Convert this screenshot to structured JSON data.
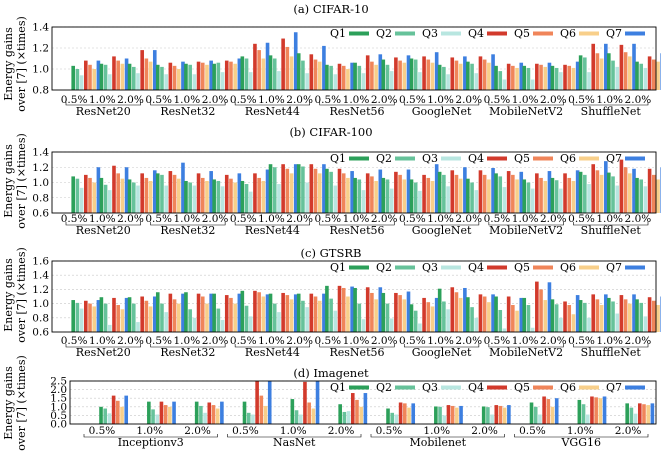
{
  "colors": [
    "#2ca05a",
    "#66c29a",
    "#b8e6e0",
    "#d23a2c",
    "#f0855a",
    "#f8cf8a",
    "#3d7fe0"
  ],
  "legend": [
    "Q1",
    "Q2",
    "Q3",
    "Q4",
    "Q5",
    "Q6",
    "Q7"
  ],
  "ylabel": [
    "Energy gains",
    "over [7] (×times)"
  ],
  "chart_data": [
    {
      "type": "bar",
      "title": "(a) CIFAR-10",
      "ylim": [
        0.8,
        1.4
      ],
      "yticks": [
        "0.8",
        "1.0",
        "1.2",
        "1.4"
      ],
      "grid": true,
      "legend_position": "top-right",
      "groups": [
        "ResNet20",
        "ResNet32",
        "ResNet44",
        "ResNet56",
        "GoogleNet",
        "MobileNetV2",
        "ShuffleNet"
      ],
      "subcategories": [
        "0.5%",
        "1.0%",
        "2.0%"
      ],
      "series": [
        {
          "name": "Q1",
          "values": [
            1.03,
            1.05,
            1.05,
            1.04,
            1.05,
            1.05,
            1.12,
            1.13,
            1.15,
            1.04,
            1.06,
            1.09,
            1.1,
            1.04,
            1.07,
            1.03,
            1.03,
            1.03,
            1.13,
            1.15,
            1.07
          ]
        },
        {
          "name": "Q2",
          "values": [
            1.0,
            1.04,
            1.02,
            1.02,
            1.04,
            1.06,
            1.1,
            1.1,
            1.08,
            1.03,
            1.03,
            1.04,
            1.09,
            1.02,
            1.05,
            0.98,
            1.01,
            1.01,
            1.11,
            1.08,
            1.05
          ]
        },
        {
          "name": "Q3",
          "values": [
            0.94,
            0.95,
            0.96,
            0.95,
            0.95,
            0.97,
            0.97,
            0.98,
            0.96,
            0.95,
            0.96,
            0.98,
            0.97,
            0.95,
            0.96,
            0.9,
            0.9,
            0.97,
            0.97,
            1.02,
            1.01
          ]
        },
        {
          "name": "Q4",
          "values": [
            1.08,
            1.12,
            1.18,
            1.06,
            1.07,
            1.08,
            1.24,
            1.29,
            1.14,
            1.05,
            1.13,
            1.11,
            1.12,
            1.11,
            1.12,
            1.05,
            1.05,
            1.04,
            1.24,
            1.23,
            1.12
          ]
        },
        {
          "name": "Q5",
          "values": [
            1.04,
            1.08,
            1.1,
            1.03,
            1.06,
            1.07,
            1.18,
            1.21,
            1.09,
            1.03,
            1.07,
            1.08,
            1.09,
            1.08,
            1.09,
            1.03,
            1.04,
            1.03,
            1.15,
            1.16,
            1.09
          ]
        },
        {
          "name": "Q6",
          "values": [
            1.0,
            1.05,
            1.07,
            1.0,
            1.04,
            1.05,
            1.1,
            1.12,
            1.07,
            1.0,
            1.04,
            1.06,
            1.06,
            1.05,
            1.06,
            1.01,
            1.02,
            1.01,
            1.1,
            1.12,
            1.07
          ]
        },
        {
          "name": "Q7",
          "values": [
            1.08,
            1.1,
            1.18,
            1.07,
            1.08,
            1.1,
            1.25,
            1.35,
            1.22,
            1.06,
            1.14,
            1.13,
            1.16,
            1.12,
            1.14,
            1.06,
            1.06,
            1.07,
            1.24,
            1.24,
            1.15
          ]
        }
      ]
    },
    {
      "type": "bar",
      "title": "(b) CIFAR-100",
      "ylim": [
        0.6,
        1.4
      ],
      "yticks": [
        "0.6",
        "0.8",
        "1.0",
        "1.2",
        "1.4"
      ],
      "grid": true,
      "legend_position": "top-right",
      "groups": [
        "ResNet20",
        "ResNet32",
        "ResNet44",
        "ResNet56",
        "GoogleNet",
        "MobileNetV2",
        "ShuffleNet"
      ],
      "subcategories": [
        "0.5%",
        "1.0%",
        "2.0%"
      ],
      "series": [
        {
          "name": "Q1",
          "values": [
            1.08,
            1.06,
            1.04,
            1.12,
            1.02,
            1.04,
            1.02,
            1.24,
            1.24,
            1.18,
            1.06,
            1.06,
            1.04,
            1.14,
            1.05,
            1.12,
            1.04,
            1.06,
            1.14,
            1.13,
            1.06
          ]
        },
        {
          "name": "Q2",
          "values": [
            1.05,
            0.97,
            1.0,
            1.1,
            1.0,
            1.02,
            0.98,
            1.2,
            1.21,
            1.14,
            1.04,
            1.04,
            1.0,
            1.1,
            1.0,
            1.08,
            1.0,
            1.03,
            1.1,
            1.08,
            1.04
          ]
        },
        {
          "name": "Q3",
          "values": [
            0.93,
            0.9,
            0.96,
            0.96,
            0.96,
            0.95,
            0.88,
            0.98,
            1.0,
            0.96,
            0.9,
            0.92,
            0.89,
            0.95,
            0.9,
            0.94,
            0.92,
            0.92,
            0.98,
            0.96,
            0.95
          ]
        },
        {
          "name": "Q4",
          "values": [
            1.1,
            1.22,
            1.12,
            1.15,
            1.12,
            1.1,
            1.12,
            1.24,
            1.24,
            1.18,
            1.12,
            1.14,
            1.1,
            1.16,
            1.16,
            1.15,
            1.12,
            1.12,
            1.24,
            1.3,
            1.18
          ]
        },
        {
          "name": "Q5",
          "values": [
            1.06,
            1.12,
            1.06,
            1.1,
            1.06,
            1.05,
            1.06,
            1.18,
            1.18,
            1.12,
            1.08,
            1.1,
            1.06,
            1.1,
            1.1,
            1.1,
            1.06,
            1.06,
            1.16,
            1.2,
            1.1
          ]
        },
        {
          "name": "Q6",
          "values": [
            1.0,
            1.05,
            1.02,
            1.05,
            1.02,
            1.0,
            1.02,
            1.12,
            1.12,
            1.06,
            1.02,
            1.04,
            1.02,
            1.05,
            1.04,
            1.04,
            1.02,
            1.02,
            1.1,
            1.12,
            1.04
          ]
        },
        {
          "name": "Q7",
          "values": [
            1.2,
            1.2,
            1.16,
            1.26,
            1.15,
            1.12,
            1.17,
            1.24,
            1.24,
            1.15,
            1.17,
            1.17,
            1.24,
            1.2,
            1.19,
            1.14,
            1.15,
            1.16,
            1.28,
            1.18,
            1.2
          ]
        }
      ]
    },
    {
      "type": "bar",
      "title": "(c) GTSRB",
      "ylim": [
        0.6,
        1.6
      ],
      "yticks": [
        "0.6",
        "0.8",
        "1.0",
        "1.2",
        "1.4",
        "1.6"
      ],
      "grid": true,
      "legend_position": "top-right",
      "groups": [
        "ResNet20",
        "ResNet32",
        "ResNet44",
        "ResNet56",
        "GoogleNet",
        "MobileNetV2",
        "ShuffleNet"
      ],
      "subcategories": [
        "0.5%",
        "1.0%",
        "2.0%"
      ],
      "series": [
        {
          "name": "Q1",
          "values": [
            1.05,
            1.09,
            1.09,
            1.16,
            1.16,
            1.14,
            1.18,
            1.14,
            1.14,
            1.25,
            1.22,
            1.15,
            0.99,
            1.21,
            1.09,
            1.1,
            1.08,
            1.06,
            1.05,
            1.08,
            1.06
          ]
        },
        {
          "name": "Q2",
          "values": [
            1.01,
            1.0,
            1.0,
            1.0,
            0.92,
            0.93,
            0.97,
            1.0,
            1.04,
            1.07,
            1.0,
            1.0,
            0.9,
            1.03,
            0.95,
            0.91,
            0.98,
            0.99,
            1.01,
            1.03,
            1.01
          ]
        },
        {
          "name": "Q3",
          "values": [
            0.93,
            0.7,
            0.74,
            0.88,
            0.8,
            0.77,
            0.82,
            0.88,
            0.95,
            0.9,
            0.78,
            0.79,
            0.72,
            0.92,
            0.8,
            0.65,
            0.66,
            0.8,
            0.8,
            0.86,
            0.82
          ]
        },
        {
          "name": "Q4",
          "values": [
            1.04,
            1.08,
            1.1,
            1.14,
            1.14,
            1.12,
            1.18,
            1.15,
            1.14,
            1.25,
            1.23,
            1.15,
            1.08,
            1.23,
            1.13,
            1.1,
            1.31,
            1.03,
            1.13,
            1.12,
            1.09
          ]
        },
        {
          "name": "Q5",
          "values": [
            1.0,
            0.98,
            1.04,
            1.06,
            1.1,
            1.08,
            1.16,
            1.12,
            1.1,
            1.22,
            1.15,
            1.12,
            1.02,
            1.16,
            1.1,
            0.98,
            1.2,
            0.98,
            1.06,
            1.06,
            1.04
          ]
        },
        {
          "name": "Q6",
          "values": [
            0.96,
            0.92,
            0.96,
            1.0,
            1.0,
            1.0,
            1.1,
            1.06,
            1.04,
            1.1,
            1.06,
            1.06,
            0.96,
            1.08,
            1.02,
            0.9,
            1.05,
            0.85,
            0.98,
            1.0,
            0.98
          ]
        },
        {
          "name": "Q7",
          "values": [
            1.05,
            1.08,
            1.1,
            1.14,
            1.14,
            1.14,
            1.13,
            1.13,
            1.14,
            1.24,
            1.23,
            1.17,
            1.08,
            1.22,
            1.13,
            1.08,
            1.3,
            1.12,
            1.13,
            1.13,
            1.1
          ]
        }
      ]
    },
    {
      "type": "bar",
      "title": "(d) Imagenet",
      "ylim": [
        0.0,
        2.5
      ],
      "yticks": [
        "0.0",
        "0.5",
        "1.0",
        "1.5",
        "2.0",
        "2.5"
      ],
      "grid": true,
      "legend_position": "top-right",
      "groups": [
        "Inceptionv3",
        "NasNet",
        "Mobilenet",
        "VGG16"
      ],
      "subcategories": [
        "0.5%",
        "1.0%",
        "2.0%"
      ],
      "series": [
        {
          "name": "Q1",
          "values": [
            1.0,
            1.3,
            1.3,
            1.3,
            1.45,
            1.15,
            0.9,
            1.02,
            1.02,
            1.25,
            1.4,
            1.2
          ]
        },
        {
          "name": "Q2",
          "values": [
            0.9,
            0.85,
            1.05,
            0.65,
            0.8,
            0.7,
            0.65,
            1.0,
            0.98,
            1.0,
            1.15,
            0.95
          ]
        },
        {
          "name": "Q3",
          "values": [
            0.62,
            0.55,
            0.65,
            0.55,
            0.55,
            0.75,
            0.55,
            0.5,
            0.55,
            0.55,
            0.55,
            0.6
          ]
        },
        {
          "name": "Q4",
          "values": [
            1.65,
            1.3,
            1.25,
            2.55,
            2.45,
            1.8,
            1.25,
            1.1,
            1.1,
            1.6,
            1.6,
            1.2
          ]
        },
        {
          "name": "Q5",
          "values": [
            1.35,
            1.1,
            1.1,
            1.65,
            1.25,
            1.4,
            1.2,
            1.05,
            1.05,
            1.45,
            1.55,
            1.15
          ]
        },
        {
          "name": "Q6",
          "values": [
            1.0,
            1.0,
            0.9,
            1.05,
            0.9,
            1.0,
            0.95,
            0.95,
            0.95,
            1.0,
            1.5,
            1.1
          ]
        },
        {
          "name": "Q7",
          "values": [
            1.65,
            1.3,
            1.3,
            2.55,
            2.5,
            1.8,
            1.2,
            1.05,
            1.1,
            1.5,
            1.6,
            1.2
          ]
        }
      ]
    }
  ]
}
